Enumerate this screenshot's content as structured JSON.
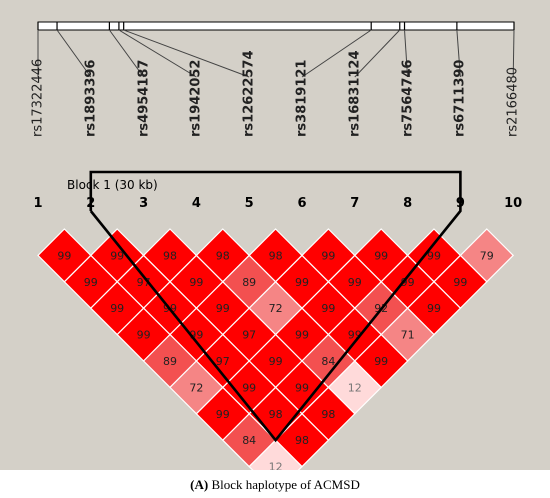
{
  "snps": [
    {
      "index": "1",
      "name": "rs17322446",
      "bold": false
    },
    {
      "index": "2",
      "name": "rs1893396",
      "bold": true
    },
    {
      "index": "3",
      "name": "rs4954187",
      "bold": true
    },
    {
      "index": "4",
      "name": "rs1942052",
      "bold": true
    },
    {
      "index": "5",
      "name": "rs12622574",
      "bold": true
    },
    {
      "index": "6",
      "name": "rs3819121",
      "bold": true
    },
    {
      "index": "7",
      "name": "rs16831124",
      "bold": true
    },
    {
      "index": "8",
      "name": "rs7564746",
      "bold": true
    },
    {
      "index": "9",
      "name": "rs6711390",
      "bold": true
    },
    {
      "index": "10",
      "name": "rs2166480",
      "bold": false
    }
  ],
  "snp_physical_positions_relative": [
    0.0,
    0.04,
    0.15,
    0.17,
    0.18,
    0.7,
    0.76,
    0.77,
    0.88,
    1.0
  ],
  "block": {
    "label": "Block 1 (30 kb)",
    "start_snp": 2,
    "end_snp": 9
  },
  "ld_matrix_dprime": [
    {
      "pair": [
        1,
        2
      ],
      "value": "99"
    },
    {
      "pair": [
        2,
        3
      ],
      "value": "99"
    },
    {
      "pair": [
        3,
        4
      ],
      "value": "98"
    },
    {
      "pair": [
        4,
        5
      ],
      "value": "98"
    },
    {
      "pair": [
        5,
        6
      ],
      "value": "98"
    },
    {
      "pair": [
        6,
        7
      ],
      "value": "99"
    },
    {
      "pair": [
        7,
        8
      ],
      "value": "99"
    },
    {
      "pair": [
        8,
        9
      ],
      "value": "99"
    },
    {
      "pair": [
        9,
        10
      ],
      "value": "79"
    },
    {
      "pair": [
        1,
        3
      ],
      "value": "99"
    },
    {
      "pair": [
        2,
        4
      ],
      "value": "97"
    },
    {
      "pair": [
        3,
        5
      ],
      "value": "99"
    },
    {
      "pair": [
        4,
        6
      ],
      "value": "89"
    },
    {
      "pair": [
        5,
        7
      ],
      "value": "99"
    },
    {
      "pair": [
        6,
        8
      ],
      "value": "99"
    },
    {
      "pair": [
        7,
        9
      ],
      "value": "99"
    },
    {
      "pair": [
        8,
        10
      ],
      "value": "99"
    },
    {
      "pair": [
        1,
        4
      ],
      "value": "99"
    },
    {
      "pair": [
        2,
        5
      ],
      "value": "99"
    },
    {
      "pair": [
        3,
        6
      ],
      "value": "99"
    },
    {
      "pair": [
        4,
        7
      ],
      "value": "72"
    },
    {
      "pair": [
        5,
        8
      ],
      "value": "99"
    },
    {
      "pair": [
        6,
        9
      ],
      "value": "92"
    },
    {
      "pair": [
        7,
        10
      ],
      "value": "99"
    },
    {
      "pair": [
        1,
        5
      ],
      "value": "99"
    },
    {
      "pair": [
        2,
        6
      ],
      "value": "99"
    },
    {
      "pair": [
        3,
        7
      ],
      "value": "97"
    },
    {
      "pair": [
        4,
        8
      ],
      "value": "99"
    },
    {
      "pair": [
        5,
        9
      ],
      "value": "99"
    },
    {
      "pair": [
        6,
        10
      ],
      "value": "71"
    },
    {
      "pair": [
        1,
        6
      ],
      "value": "89"
    },
    {
      "pair": [
        2,
        7
      ],
      "value": "97"
    },
    {
      "pair": [
        3,
        8
      ],
      "value": "99"
    },
    {
      "pair": [
        4,
        9
      ],
      "value": "84"
    },
    {
      "pair": [
        5,
        10
      ],
      "value": "99"
    },
    {
      "pair": [
        1,
        7
      ],
      "value": "72"
    },
    {
      "pair": [
        2,
        8
      ],
      "value": "99"
    },
    {
      "pair": [
        3,
        9
      ],
      "value": "99"
    },
    {
      "pair": [
        4,
        10
      ],
      "value": "12"
    },
    {
      "pair": [
        1,
        8
      ],
      "value": "99"
    },
    {
      "pair": [
        2,
        9
      ],
      "value": "98"
    },
    {
      "pair": [
        3,
        10
      ],
      "value": "98"
    },
    {
      "pair": [
        1,
        9
      ],
      "value": "84"
    },
    {
      "pair": [
        2,
        10
      ],
      "value": "98"
    },
    {
      "pair": [
        1,
        10
      ],
      "value": "12"
    }
  ],
  "colors": {
    "background": "#d4d0c8",
    "strong_ld": "#ff0000",
    "high_ld": "#f35050",
    "medium_ld": "#f58585",
    "low_ld": "#ffdada",
    "cell_border": "#ffffff",
    "block_outline": "#000000"
  },
  "caption": {
    "prefix": "(A)",
    "text": " Block haplotype of ACMSD"
  }
}
